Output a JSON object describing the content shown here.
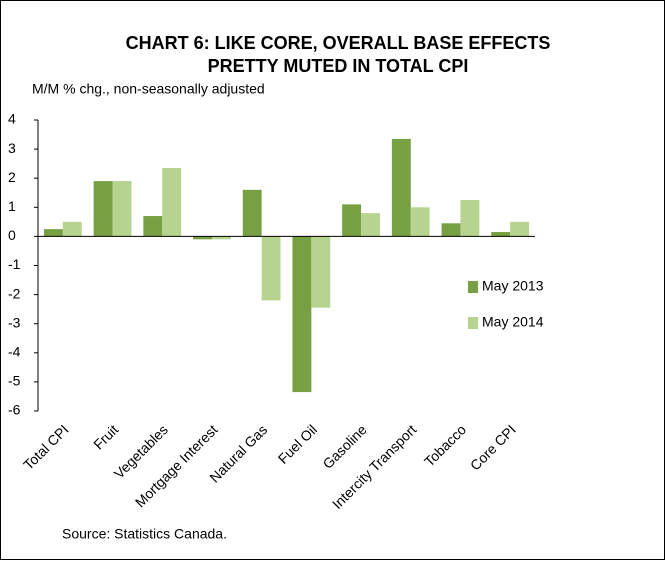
{
  "chart_data": {
    "type": "bar",
    "title": [
      "CHART 6: LIKE CORE, OVERALL BASE EFFECTS",
      "PRETTY MUTED IN TOTAL CPI"
    ],
    "subtitle": "M/M % chg., non-seasonally adjusted",
    "source": "Source: Statistics Canada.",
    "categories": [
      "Total CPI",
      "Fruit",
      "Vegetables",
      "Mortgage Interest",
      "Natural Gas",
      "Fuel Oil",
      "Gasoline",
      "Intercity Transport",
      "Tobacco",
      "Core CPI"
    ],
    "series": [
      {
        "name": "May 2013",
        "color": "#77a043",
        "values": [
          0.25,
          1.9,
          0.7,
          -0.1,
          1.6,
          -5.35,
          1.1,
          3.35,
          0.45,
          0.15
        ]
      },
      {
        "name": "May 2014",
        "color": "#b6d48f",
        "values": [
          0.5,
          1.9,
          2.35,
          -0.1,
          -2.2,
          -2.45,
          0.8,
          1.0,
          1.25,
          0.5
        ]
      }
    ],
    "ylim": [
      -6,
      4
    ],
    "yticks": [
      -6,
      -5,
      -4,
      -3,
      -2,
      -1,
      0,
      1,
      2,
      3,
      4
    ],
    "grid": false
  }
}
